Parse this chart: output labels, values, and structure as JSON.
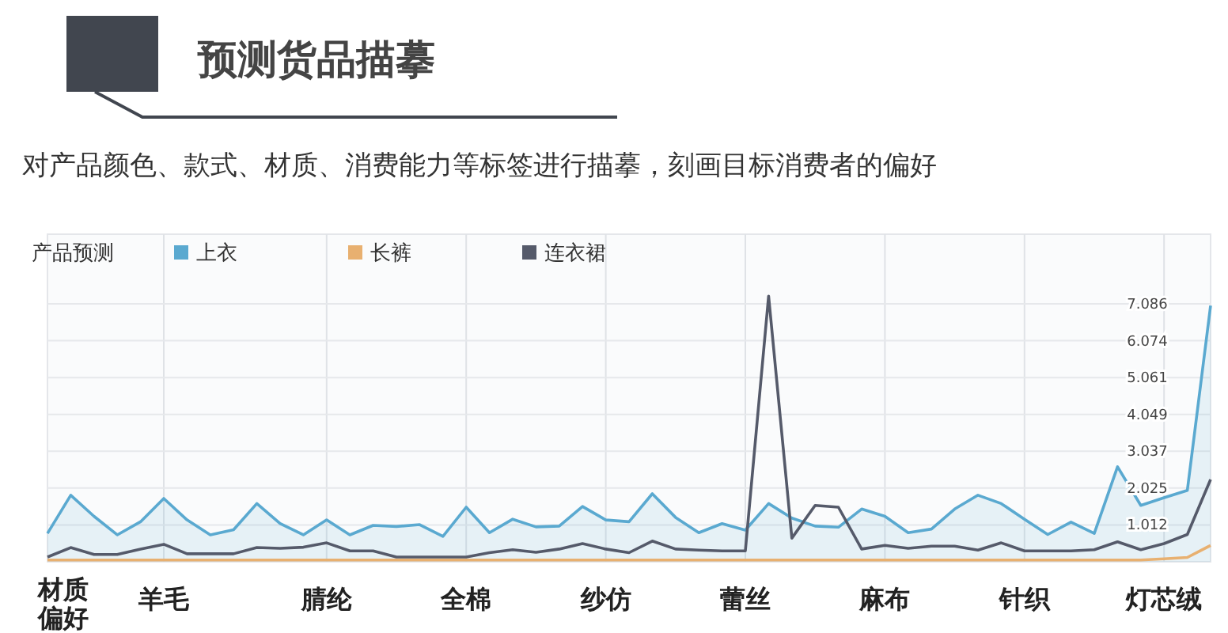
{
  "chart_data": {
    "type": "line",
    "title": "预测货品描摹",
    "subtitle": "对产品颜色、款式、材质、消费能力等标签进行描摹，刻画目标消费者的偏好",
    "xlabel": "材质偏好",
    "legend_title": "产品预测",
    "legend": "top left",
    "grid": true,
    "categories": [
      null,
      null,
      null,
      null,
      null,
      "羊毛",
      null,
      null,
      null,
      null,
      null,
      null,
      "腈纶",
      null,
      null,
      null,
      null,
      null,
      "全棉",
      null,
      null,
      null,
      null,
      null,
      "纱仿",
      null,
      null,
      null,
      null,
      null,
      "蕾丝",
      null,
      null,
      null,
      null,
      null,
      "麻布",
      null,
      null,
      null,
      null,
      null,
      "针织",
      null,
      null,
      null,
      null,
      null,
      "灯芯绒",
      null,
      null
    ],
    "ylim": [
      0,
      9
    ],
    "yticks": [
      {
        "value": 1.012,
        "label": "1.012"
      },
      {
        "value": 2.025,
        "label": "2.025"
      },
      {
        "value": 3.037,
        "label": "3.037"
      },
      {
        "value": 4.049,
        "label": "4.049"
      },
      {
        "value": 5.061,
        "label": "5.061"
      },
      {
        "value": 6.074,
        "label": "6.074"
      },
      {
        "value": 7.086,
        "label": "7.086"
      }
    ],
    "series": [
      {
        "name": "上衣",
        "type": "area",
        "color": "#5aa9d0",
        "values": [
          0.78,
          1.83,
          1.25,
          0.74,
          1.1,
          1.74,
          1.15,
          0.74,
          0.88,
          1.6,
          1.05,
          0.74,
          1.15,
          0.74,
          1.0,
          0.97,
          1.02,
          0.7,
          1.5,
          0.8,
          1.17,
          0.96,
          0.98,
          1.52,
          1.15,
          1.1,
          1.87,
          1.22,
          0.8,
          1.05,
          0.87,
          1.6,
          1.2,
          0.98,
          0.95,
          1.45,
          1.25,
          0.8,
          0.9,
          1.45,
          1.83,
          1.6,
          1.17,
          0.75,
          1.09,
          0.78,
          2.61,
          1.55,
          1.76,
          1.96,
          7.04
        ]
      },
      {
        "name": "长裤",
        "color": "#e8b070",
        "values": [
          0.05,
          0.05,
          0.05,
          0.05,
          0.05,
          0.05,
          0.05,
          0.05,
          0.05,
          0.05,
          0.05,
          0.05,
          0.05,
          0.05,
          0.05,
          0.05,
          0.05,
          0.05,
          0.05,
          0.05,
          0.05,
          0.05,
          0.05,
          0.05,
          0.05,
          0.05,
          0.05,
          0.05,
          0.05,
          0.05,
          0.05,
          0.05,
          0.05,
          0.05,
          0.05,
          0.05,
          0.05,
          0.05,
          0.05,
          0.05,
          0.05,
          0.05,
          0.05,
          0.05,
          0.05,
          0.05,
          0.05,
          0.05,
          0.08,
          0.12,
          0.45
        ]
      },
      {
        "name": "连衣裙",
        "color": "#555a6a",
        "values": [
          0.13,
          0.39,
          0.2,
          0.2,
          0.35,
          0.48,
          0.22,
          0.22,
          0.22,
          0.39,
          0.37,
          0.4,
          0.52,
          0.3,
          0.3,
          0.13,
          0.13,
          0.13,
          0.13,
          0.25,
          0.33,
          0.26,
          0.35,
          0.5,
          0.35,
          0.25,
          0.57,
          0.35,
          0.32,
          0.3,
          0.3,
          7.3,
          0.65,
          1.55,
          1.5,
          0.35,
          0.45,
          0.37,
          0.43,
          0.43,
          0.32,
          0.52,
          0.3,
          0.3,
          0.3,
          0.33,
          0.55,
          0.33,
          0.5,
          0.75,
          2.26
        ]
      }
    ]
  }
}
